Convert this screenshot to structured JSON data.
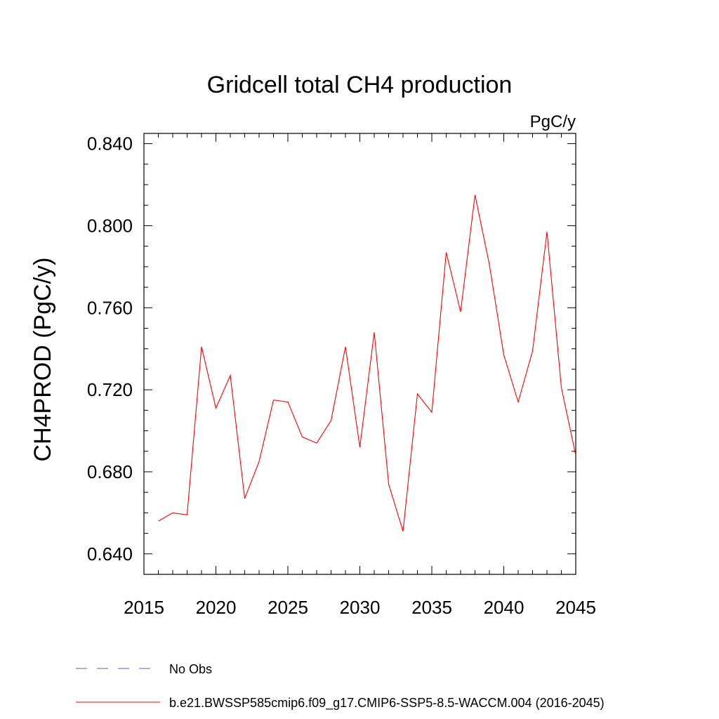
{
  "chart_data": {
    "type": "line",
    "title": "Gridcell total CH4 production",
    "units": "PgC/y",
    "ylabel": "CH4PROD  (PgC/y)",
    "xlabel": "",
    "xlim": [
      2015,
      2045
    ],
    "ylim": [
      0.63,
      0.845
    ],
    "xticks": [
      2015,
      2020,
      2025,
      2030,
      2035,
      2040,
      2045
    ],
    "xtick_labels": [
      "2015",
      "2020",
      "2025",
      "2030",
      "2035",
      "2040",
      "2045"
    ],
    "yticks": [
      0.64,
      0.68,
      0.72,
      0.76,
      0.8,
      0.84
    ],
    "ytick_labels": [
      "0.640",
      "0.680",
      "0.720",
      "0.760",
      "0.800",
      "0.840"
    ],
    "grid": false,
    "legend_position": "bottom",
    "series": [
      {
        "name": "b.e21.BWSSP585cmip6.f09_g17.CMIP6-SSP5-8.5-WACCM.004 (2016-2045)",
        "color": "#ff0000",
        "style": "solid",
        "x": [
          2016,
          2017,
          2018,
          2019,
          2020,
          2021,
          2022,
          2023,
          2024,
          2025,
          2026,
          2027,
          2028,
          2029,
          2030,
          2031,
          2032,
          2033,
          2034,
          2035,
          2036,
          2037,
          2038,
          2039,
          2040,
          2041,
          2042,
          2043,
          2044,
          2045
        ],
        "values": [
          0.656,
          0.66,
          0.659,
          0.741,
          0.711,
          0.727,
          0.667,
          0.685,
          0.715,
          0.714,
          0.697,
          0.694,
          0.705,
          0.741,
          0.692,
          0.748,
          0.674,
          0.651,
          0.718,
          0.709,
          0.787,
          0.758,
          0.815,
          0.781,
          0.737,
          0.714,
          0.739,
          0.797,
          0.721,
          0.688
        ]
      }
    ],
    "legend": [
      {
        "label": "No Obs",
        "color": "#6a5acd",
        "style": "dashed"
      },
      {
        "label": "b.e21.BWSSP585cmip6.f09_g17.CMIP6-SSP5-8.5-WACCM.004 (2016-2045)",
        "color": "#ff0000",
        "style": "solid"
      }
    ]
  }
}
